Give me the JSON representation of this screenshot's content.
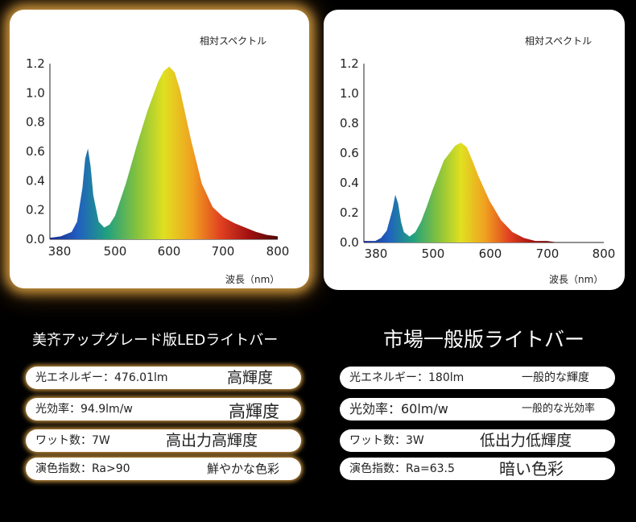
{
  "chart_data": [
    {
      "type": "area",
      "title": "相対スペクトル",
      "xlabel": "波長（nm）",
      "ylabel": "",
      "xlim": [
        380,
        800
      ],
      "ylim": [
        0,
        1.2
      ],
      "x_ticks": [
        "380",
        "500",
        "600",
        "700",
        "800"
      ],
      "y_ticks": [
        "0.0",
        "0.2",
        "0.4",
        "0.6",
        "0.8",
        "1.0",
        "1.2"
      ],
      "grid": false,
      "series": [
        {
          "x": [
            380,
            400,
            420,
            430,
            440,
            445,
            450,
            455,
            460,
            470,
            480,
            490,
            500,
            520,
            540,
            560,
            580,
            590,
            600,
            610,
            620,
            640,
            660,
            680,
            700,
            720,
            740,
            760,
            780,
            800
          ],
          "values": [
            0.01,
            0.02,
            0.05,
            0.12,
            0.35,
            0.55,
            0.62,
            0.5,
            0.3,
            0.12,
            0.08,
            0.1,
            0.16,
            0.38,
            0.64,
            0.88,
            1.08,
            1.15,
            1.18,
            1.14,
            1.02,
            0.68,
            0.38,
            0.22,
            0.15,
            0.11,
            0.08,
            0.05,
            0.03,
            0.02
          ]
        }
      ]
    },
    {
      "type": "area",
      "title": "相対スペクトル",
      "xlabel": "波長（nm）",
      "ylabel": "",
      "xlim": [
        380,
        800
      ],
      "ylim": [
        0,
        1.2
      ],
      "x_ticks": [
        "380",
        "500",
        "600",
        "700",
        "800"
      ],
      "y_ticks": [
        "0.0",
        "0.2",
        "0.4",
        "0.6",
        "0.8",
        "1.0",
        "1.2"
      ],
      "grid": false,
      "series": [
        {
          "x": [
            380,
            400,
            410,
            420,
            430,
            435,
            440,
            445,
            450,
            460,
            470,
            480,
            490,
            500,
            520,
            540,
            550,
            560,
            570,
            580,
            600,
            620,
            640,
            660,
            680,
            700,
            720
          ],
          "values": [
            0.01,
            0.01,
            0.03,
            0.08,
            0.22,
            0.32,
            0.26,
            0.14,
            0.07,
            0.04,
            0.07,
            0.14,
            0.24,
            0.35,
            0.55,
            0.65,
            0.67,
            0.64,
            0.55,
            0.45,
            0.28,
            0.15,
            0.07,
            0.03,
            0.01,
            0.01,
            0.0
          ]
        }
      ]
    }
  ],
  "headings": {
    "left": "美齐アップグレード版LEDライトバー",
    "right": "市場一般版ライトバー"
  },
  "specs_left": [
    {
      "label": "光エネルギー：476.01lm",
      "value": "高輝度"
    },
    {
      "label": "光効率：94.9lm/w",
      "value": "高輝度"
    },
    {
      "label": "ワット数：7W",
      "value": "高出力高輝度"
    },
    {
      "label": "演色指数：Ra>90",
      "value": "鮮やかな色彩"
    }
  ],
  "specs_right": [
    {
      "label": "光エネルギー：180lm",
      "value": "一般的な輝度"
    },
    {
      "label": "光効率：60lm/w",
      "value": "一般的な光効率"
    },
    {
      "label": "ワット数：3W",
      "value": "低出力低輝度"
    },
    {
      "label": "演色指数：Ra=63.5",
      "value": "暗い色彩"
    }
  ],
  "colors": {
    "background": "#000000",
    "card": "#ffffff",
    "glow": "#e6a546",
    "spectrum": [
      "#1a2a8c",
      "#2060c0",
      "#20a080",
      "#80c040",
      "#e0e020",
      "#f0a020",
      "#e04020",
      "#a01010",
      "#500808"
    ]
  }
}
